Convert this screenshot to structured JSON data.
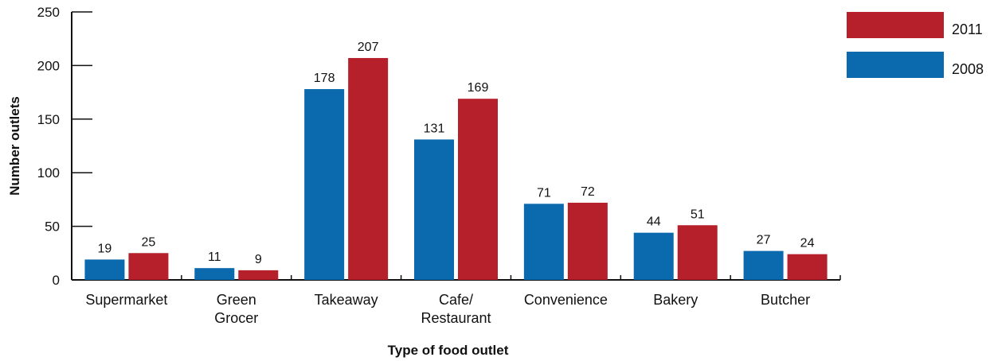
{
  "chart_data": {
    "type": "bar",
    "categories": [
      [
        "Supermarket"
      ],
      [
        "Green",
        "Grocer"
      ],
      [
        "Takeaway"
      ],
      [
        "Cafe/",
        "Restaurant"
      ],
      [
        "Convenience"
      ],
      [
        "Bakery"
      ],
      [
        "Butcher"
      ]
    ],
    "series": [
      {
        "name": "2008",
        "color": "#0a6aad",
        "values": [
          19,
          11,
          178,
          131,
          71,
          44,
          27
        ]
      },
      {
        "name": "2011",
        "color": "#b5202a",
        "values": [
          25,
          9,
          207,
          169,
          72,
          51,
          24
        ]
      }
    ],
    "legend_order": [
      "2011",
      "2008"
    ],
    "legend_position": "top-right",
    "xlabel": "Type of food outlet",
    "ylabel": "Number outlets",
    "ylim": [
      0,
      250
    ],
    "yticks": [
      0,
      50,
      100,
      150,
      200,
      250
    ],
    "grid": false,
    "data_labels": true
  }
}
